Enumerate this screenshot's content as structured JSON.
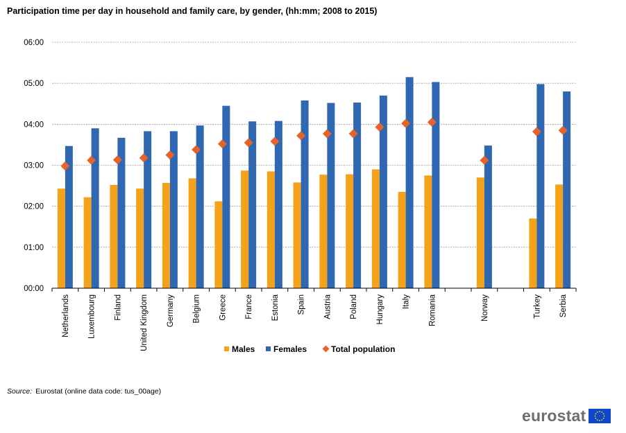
{
  "chart_data": {
    "type": "bar",
    "title": "Participation time per day in household and family care, by gender, (hh:mm; 2008 to 2015)",
    "categories": [
      "Netherlands",
      "Luxembourg",
      "Finland",
      "United Kingdom",
      "Germany",
      "Belgium",
      "Greece",
      "France",
      "Estonia",
      "Spain",
      "Austria",
      "Poland",
      "Hungary",
      "Italy",
      "Romania",
      "",
      "Norway",
      "",
      "Turkey",
      "Serbia"
    ],
    "series": [
      {
        "name": "Males",
        "kind": "bar",
        "color": "#f5a21b",
        "values": [
          2.43,
          2.22,
          2.52,
          2.43,
          2.57,
          2.68,
          2.12,
          2.87,
          2.85,
          2.58,
          2.77,
          2.78,
          2.9,
          2.35,
          2.75,
          null,
          2.7,
          null,
          1.7,
          2.53
        ]
      },
      {
        "name": "Females",
        "kind": "bar",
        "color": "#2f67b1",
        "values": [
          3.47,
          3.9,
          3.67,
          3.83,
          3.83,
          3.97,
          4.45,
          4.07,
          4.08,
          4.58,
          4.52,
          4.53,
          4.7,
          5.15,
          5.03,
          null,
          3.48,
          null,
          4.98,
          4.8
        ]
      },
      {
        "name": "Total population",
        "kind": "marker",
        "color": "#e8632b",
        "values": [
          2.98,
          3.12,
          3.13,
          3.18,
          3.25,
          3.38,
          3.52,
          3.55,
          3.58,
          3.72,
          3.77,
          3.77,
          3.93,
          4.02,
          4.05,
          null,
          3.12,
          null,
          3.82,
          3.85
        ]
      }
    ],
    "value_unit": "hours",
    "ylim": [
      0,
      6
    ],
    "yticks": [
      0,
      1,
      2,
      3,
      4,
      5,
      6
    ],
    "ytick_labels": [
      "00:00",
      "01:00",
      "02:00",
      "03:00",
      "04:00",
      "05:00",
      "06:00"
    ],
    "grid": true,
    "legend_position": "bottom"
  },
  "source": {
    "label": "Source:",
    "text": "Eurostat (online data code: tus_00age)"
  },
  "logo": {
    "text": "eurostat"
  },
  "colors": {
    "grid": "#9a9a9a",
    "axis": "#000000"
  }
}
